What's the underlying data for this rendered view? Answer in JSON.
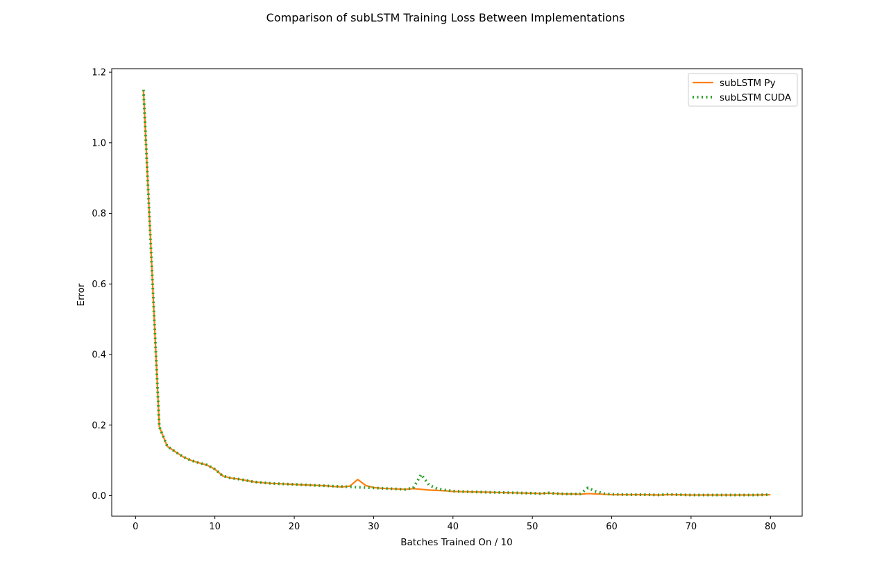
{
  "chart_data": {
    "type": "line",
    "title": "Comparison of subLSTM Training Loss Between Implementations",
    "xlabel": "Batches Trained On / 10",
    "ylabel": "Error",
    "xlim": [
      -3,
      84
    ],
    "ylim": [
      -0.058,
      1.21
    ],
    "xticks": [
      0,
      10,
      20,
      30,
      40,
      50,
      60,
      70,
      80
    ],
    "xtick_labels": [
      "0",
      "10",
      "20",
      "30",
      "40",
      "50",
      "60",
      "70",
      "80"
    ],
    "yticks": [
      0.0,
      0.2,
      0.4,
      0.6,
      0.8,
      1.0,
      1.2
    ],
    "ytick_labels": [
      "0.0",
      "0.2",
      "0.4",
      "0.6",
      "0.8",
      "1.0",
      "1.2"
    ],
    "grid": false,
    "legend_position": "top-right",
    "series": [
      {
        "name": "subLSTM Py",
        "color": "#ff7f0e",
        "style": "solid",
        "x": [
          1,
          3,
          4,
          5,
          6,
          7,
          8,
          9,
          10,
          11,
          12,
          13,
          14,
          15,
          16,
          17,
          18,
          19,
          20,
          21,
          22,
          23,
          24,
          25,
          26,
          27,
          28,
          29,
          30,
          31,
          32,
          33,
          34,
          35,
          36,
          37,
          38,
          39,
          40,
          42,
          44,
          46,
          48,
          50,
          51,
          52,
          53,
          54,
          55,
          56,
          57,
          58,
          59,
          60,
          62,
          64,
          66,
          67,
          68,
          70,
          72,
          74,
          76,
          78,
          80
        ],
        "y": [
          1.15,
          0.195,
          0.14,
          0.125,
          0.11,
          0.1,
          0.093,
          0.087,
          0.075,
          0.056,
          0.05,
          0.047,
          0.043,
          0.039,
          0.037,
          0.035,
          0.034,
          0.033,
          0.032,
          0.031,
          0.03,
          0.029,
          0.028,
          0.026,
          0.025,
          0.027,
          0.046,
          0.029,
          0.023,
          0.021,
          0.02,
          0.019,
          0.018,
          0.02,
          0.018,
          0.016,
          0.015,
          0.014,
          0.012,
          0.011,
          0.01,
          0.009,
          0.008,
          0.007,
          0.006,
          0.007,
          0.006,
          0.005,
          0.005,
          0.004,
          0.006,
          0.005,
          0.004,
          0.003,
          0.003,
          0.003,
          0.002,
          0.003,
          0.003,
          0.002,
          0.002,
          0.002,
          0.002,
          0.002,
          0.003
        ]
      },
      {
        "name": "subLSTM CUDA",
        "color": "#2ca02c",
        "style": "dotted",
        "x": [
          1,
          3,
          4,
          5,
          6,
          7,
          8,
          9,
          10,
          11,
          12,
          13,
          14,
          15,
          16,
          17,
          18,
          19,
          20,
          21,
          22,
          23,
          24,
          25,
          26,
          27,
          28,
          29,
          30,
          31,
          32,
          33,
          34,
          35,
          36,
          37,
          38,
          39,
          40,
          42,
          44,
          46,
          48,
          50,
          51,
          52,
          53,
          54,
          55,
          56,
          57,
          58,
          59,
          60,
          62,
          64,
          66,
          67,
          68,
          70,
          72,
          74,
          76,
          78,
          80
        ],
        "y": [
          1.15,
          0.195,
          0.14,
          0.125,
          0.11,
          0.1,
          0.093,
          0.087,
          0.075,
          0.056,
          0.05,
          0.047,
          0.043,
          0.039,
          0.037,
          0.035,
          0.034,
          0.033,
          0.032,
          0.031,
          0.03,
          0.029,
          0.028,
          0.027,
          0.026,
          0.025,
          0.024,
          0.023,
          0.022,
          0.021,
          0.02,
          0.019,
          0.018,
          0.022,
          0.06,
          0.03,
          0.02,
          0.016,
          0.013,
          0.011,
          0.01,
          0.009,
          0.008,
          0.007,
          0.006,
          0.008,
          0.006,
          0.005,
          0.005,
          0.005,
          0.022,
          0.012,
          0.006,
          0.004,
          0.003,
          0.003,
          0.002,
          0.004,
          0.003,
          0.002,
          0.002,
          0.002,
          0.002,
          0.002,
          0.003
        ]
      }
    ]
  }
}
